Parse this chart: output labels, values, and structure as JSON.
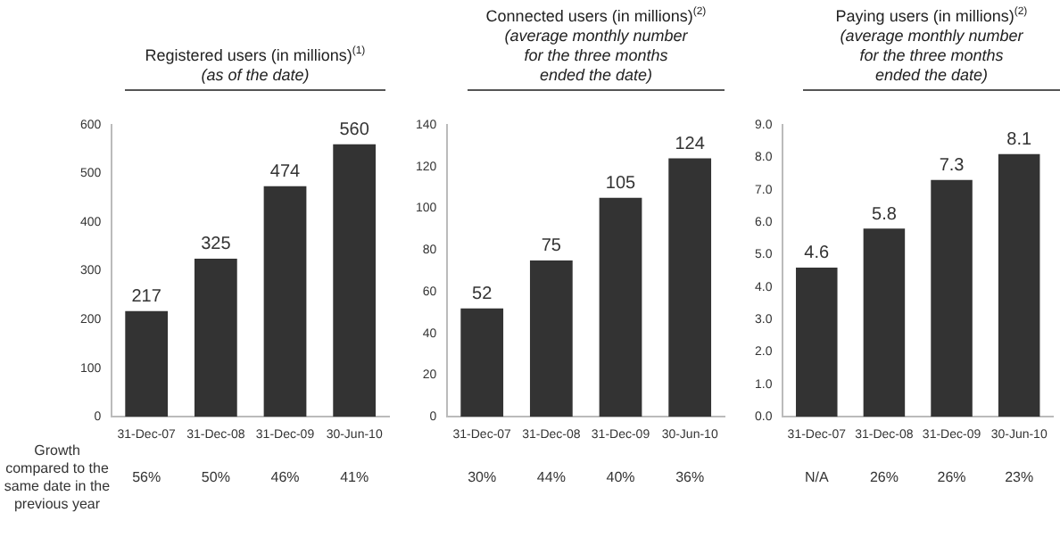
{
  "chart_data": [
    {
      "type": "bar",
      "title": "Registered users (in millions)$^{(1)}$",
      "subtitle": "(as of the date)",
      "categories": [
        "31-Dec-07",
        "31-Dec-08",
        "31-Dec-09",
        "30-Jun-10"
      ],
      "values": [
        217,
        325,
        474,
        560
      ],
      "color": "#333333",
      "ylim": [
        0,
        600
      ],
      "yticks": [
        0,
        100,
        200,
        300,
        400,
        500,
        600
      ],
      "data_labels": true,
      "grid": false,
      "legend": false,
      "annotations": [
        "Growth compared to the same date in the previous year",
        "56%",
        "50%",
        "46%",
        "41%"
      ]
    },
    {
      "type": "bar",
      "title": "Connected users (in millions)$^{(2)}$",
      "subtitle": "(average monthly number for the three months ended the date)",
      "categories": [
        "31-Dec-07",
        "31-Dec-08",
        "31-Dec-09",
        "30-Jun-10"
      ],
      "values": [
        52,
        75,
        105,
        124
      ],
      "color": "#333333",
      "ylim": [
        0,
        140
      ],
      "yticks": [
        0,
        20,
        40,
        60,
        80,
        100,
        120,
        140
      ],
      "data_labels": true,
      "grid": false,
      "legend": false,
      "annotations": [
        "30%",
        "44%",
        "40%",
        "36%"
      ]
    },
    {
      "type": "bar",
      "title": "Paying users (in millions)$^{(2)}$",
      "subtitle": "(average monthly number for the three months ended the date)",
      "categories": [
        "31-Dec-07",
        "31-Dec-08",
        "31-Dec-09",
        "30-Jun-10"
      ],
      "values": [
        4.6,
        5.8,
        7.3,
        8.1
      ],
      "color": "#333333",
      "ylim": [
        0,
        9
      ],
      "yticks": [
        {
          "value": 0,
          "label": "0.0"
        },
        {
          "value": 1,
          "label": "1.0"
        },
        {
          "value": 2,
          "label": "2.0"
        },
        {
          "value": 3,
          "label": "3.0"
        },
        {
          "value": 4,
          "label": "4.0"
        },
        {
          "value": 5,
          "label": "5.0"
        },
        {
          "value": 6,
          "label": "6.0"
        },
        {
          "value": 7,
          "label": "7.0"
        },
        {
          "value": 8,
          "label": "8.0"
        },
        {
          "value": 9,
          "label": "9.0"
        }
      ],
      "data_labels": true,
      "grid": false,
      "legend": false,
      "annotations": [
        "N/A",
        "26%",
        "26%",
        "23%"
      ]
    }
  ]
}
